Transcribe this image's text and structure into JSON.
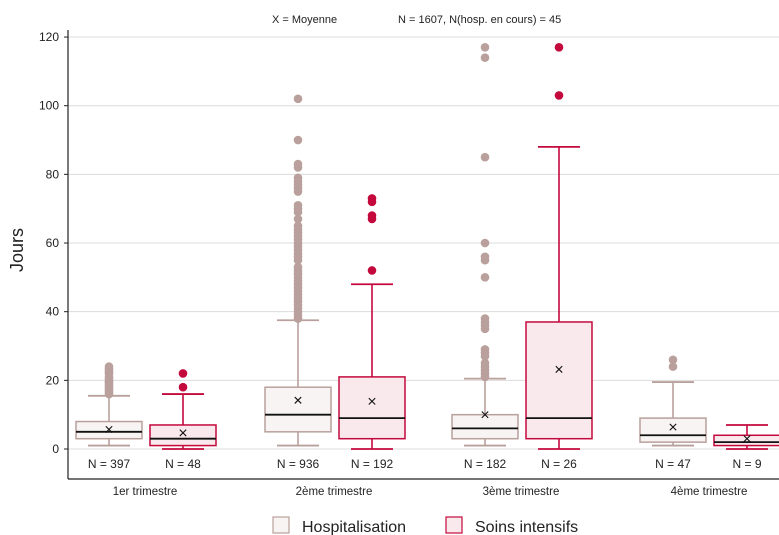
{
  "chart_data": {
    "type": "box",
    "header_left": "X = Moyenne",
    "header_right": "N = 1607, N(hosp. en cours) = 45",
    "ylabel": "Jours",
    "ylim": [
      -9,
      122
    ],
    "yticks": [
      0,
      20,
      40,
      60,
      80,
      100,
      120
    ],
    "grid": "horizontal",
    "legend_position": "bottom",
    "categories": [
      "1er trimestre",
      "2ème trimestre",
      "3ème trimestre",
      "4ème trimestre"
    ],
    "series": [
      {
        "name": "Hospitalisation",
        "color": "#b9a09c",
        "fill": "#f7f4f3",
        "boxes": [
          {
            "q1": 3,
            "median": 5,
            "q3": 8,
            "whisker_low": 1,
            "whisker_high": 15.5,
            "mean": 5.7,
            "n_label": "N = 397",
            "outliers": [
              16,
              16.5,
              17,
              17.5,
              18,
              18.5,
              19,
              19.5,
              20,
              20.5,
              21,
              22,
              22.5,
              23,
              23.5,
              24
            ]
          },
          {
            "q1": 5,
            "median": 10,
            "q3": 18,
            "whisker_low": 1,
            "whisker_high": 37.5,
            "mean": 14.2,
            "n_label": "N = 936",
            "outliers": [
              38,
              39,
              40,
              41,
              42,
              43,
              44,
              45,
              46,
              47,
              48,
              49,
              50,
              51,
              52,
              53,
              55,
              56,
              57,
              58,
              59,
              60,
              61,
              62,
              63,
              64,
              65,
              67,
              69,
              70,
              71,
              75,
              76,
              77,
              78,
              79,
              82,
              83,
              90,
              102
            ]
          },
          {
            "q1": 3,
            "median": 6,
            "q3": 10,
            "whisker_low": 1,
            "whisker_high": 20.5,
            "mean": 10,
            "n_label": "N = 182",
            "outliers": [
              21,
              22,
              23,
              24,
              25,
              27,
              28,
              29,
              35,
              36,
              37,
              38,
              50,
              55,
              56,
              60,
              85,
              114,
              117
            ]
          },
          {
            "q1": 2,
            "median": 4,
            "q3": 9,
            "whisker_low": 1,
            "whisker_high": 19.5,
            "mean": 6.4,
            "n_label": "N = 47",
            "outliers": [
              24,
              26
            ]
          }
        ]
      },
      {
        "name": "Soins intensifs",
        "color": "#c4093d",
        "fill": "#f9e8ec",
        "boxes": [
          {
            "q1": 1,
            "median": 3,
            "q3": 7,
            "whisker_low": 0,
            "whisker_high": 16,
            "mean": 4.7,
            "n_label": "N = 48",
            "outliers": [
              18,
              22
            ]
          },
          {
            "q1": 3,
            "median": 9,
            "q3": 21,
            "whisker_low": 0,
            "whisker_high": 48,
            "mean": 13.9,
            "n_label": "N = 192",
            "outliers": [
              52,
              67,
              68,
              72,
              73
            ]
          },
          {
            "q1": 3,
            "median": 9,
            "q3": 37,
            "whisker_low": 0,
            "whisker_high": 88,
            "mean": 23.2,
            "n_label": "N = 26",
            "outliers": [
              103,
              117
            ]
          },
          {
            "q1": 1,
            "median": 2,
            "q3": 4,
            "whisker_low": 0,
            "whisker_high": 7,
            "mean": 3,
            "n_label": "N = 9",
            "outliers": []
          }
        ]
      }
    ]
  }
}
